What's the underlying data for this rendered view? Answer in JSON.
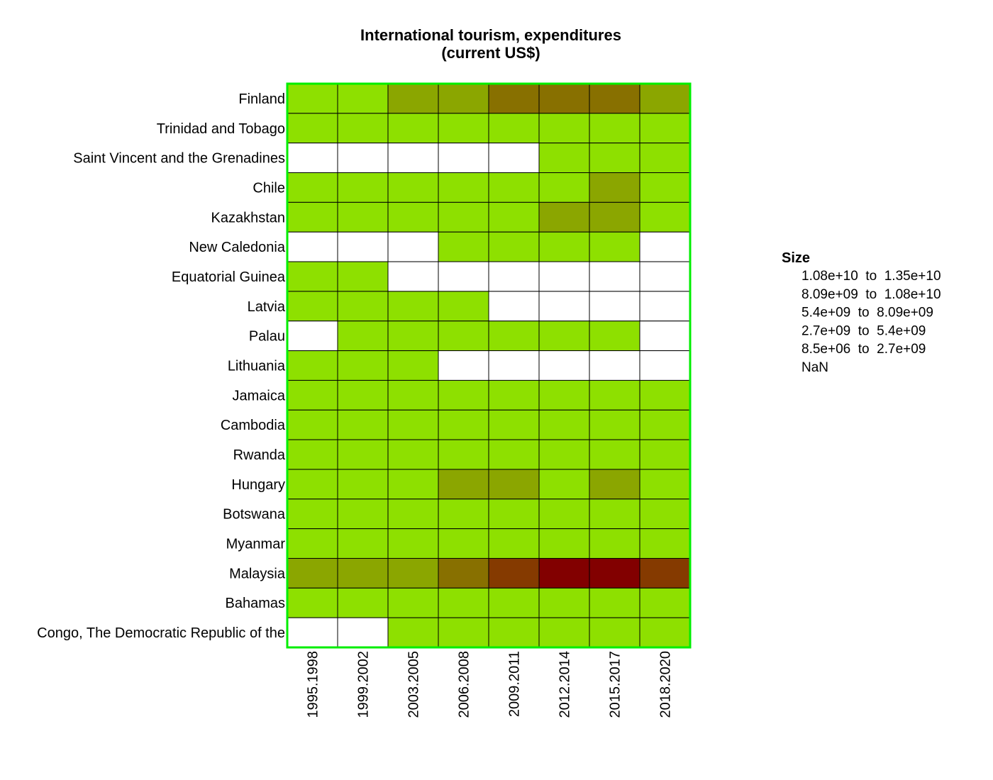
{
  "chart_data": {
    "type": "heatmap",
    "title": [
      "International tourism, expenditures",
      "(current US$)"
    ],
    "columns": [
      "1995.1998",
      "1999.2002",
      "2003.2005",
      "2006.2008",
      "2009.2011",
      "2012.2014",
      "2015.2017",
      "2018.2020"
    ],
    "rows": [
      "Finland",
      "Trinidad and Tobago",
      "Saint Vincent and the Grenadines",
      "Chile",
      "Kazakhstan",
      "New Caledonia",
      "Equatorial Guinea",
      "Latvia",
      "Palau",
      "Lithuania",
      "Jamaica",
      "Cambodia",
      "Rwanda",
      "Hungary",
      "Botswana",
      "Myanmar",
      "Malaysia",
      "Bahamas",
      "Congo, The Democratic Republic of the"
    ],
    "bin_index_matrix": [
      [
        0,
        0,
        1,
        1,
        2,
        2,
        2,
        1
      ],
      [
        0,
        0,
        0,
        0,
        0,
        0,
        0,
        0
      ],
      [
        5,
        5,
        5,
        5,
        5,
        0,
        0,
        0
      ],
      [
        0,
        0,
        0,
        0,
        0,
        0,
        1,
        0
      ],
      [
        0,
        0,
        0,
        0,
        0,
        1,
        1,
        0
      ],
      [
        5,
        5,
        5,
        0,
        0,
        0,
        0,
        5
      ],
      [
        0,
        0,
        5,
        5,
        5,
        5,
        5,
        5
      ],
      [
        0,
        0,
        0,
        0,
        5,
        5,
        5,
        5
      ],
      [
        5,
        0,
        0,
        0,
        0,
        0,
        0,
        5
      ],
      [
        0,
        0,
        0,
        5,
        5,
        5,
        5,
        5
      ],
      [
        0,
        0,
        0,
        0,
        0,
        0,
        0,
        0
      ],
      [
        0,
        0,
        0,
        0,
        0,
        0,
        0,
        0
      ],
      [
        0,
        0,
        0,
        0,
        0,
        0,
        0,
        0
      ],
      [
        0,
        0,
        0,
        1,
        1,
        0,
        1,
        0
      ],
      [
        0,
        0,
        0,
        0,
        0,
        0,
        0,
        0
      ],
      [
        0,
        0,
        0,
        0,
        0,
        0,
        0,
        0
      ],
      [
        1,
        1,
        1,
        2,
        3,
        4,
        4,
        3
      ],
      [
        0,
        0,
        0,
        0,
        0,
        0,
        0,
        0
      ],
      [
        5,
        5,
        0,
        0,
        0,
        0,
        0,
        0
      ]
    ],
    "bins": [
      {
        "range": [
          8500000.0,
          2700000000.0
        ],
        "label": "8.5e+06  to  2.7e+09",
        "color": "#8ee000"
      },
      {
        "range": [
          2700000000.0,
          5400000000.0
        ],
        "label": "2.7e+09  to  5.4e+09",
        "color": "#8ba600"
      },
      {
        "range": [
          5400000000.0,
          8090000000.0
        ],
        "label": "5.4e+09  to  8.09e+09",
        "color": "#887000"
      },
      {
        "range": [
          8090000000.0,
          10800000000.0
        ],
        "label": "8.09e+09  to  1.08e+10",
        "color": "#853a00"
      },
      {
        "range": [
          10800000000.0,
          13500000000.0
        ],
        "label": "1.08e+10  to  1.35e+10",
        "color": "#820000"
      },
      {
        "range": null,
        "label": "NaN",
        "color": "#ffffff"
      }
    ],
    "legend": {
      "title": "Size",
      "placement": "right",
      "order": [
        4,
        3,
        2,
        1,
        0,
        5
      ]
    },
    "border_color": "#00ee00",
    "cell_border_color": "#000000"
  }
}
